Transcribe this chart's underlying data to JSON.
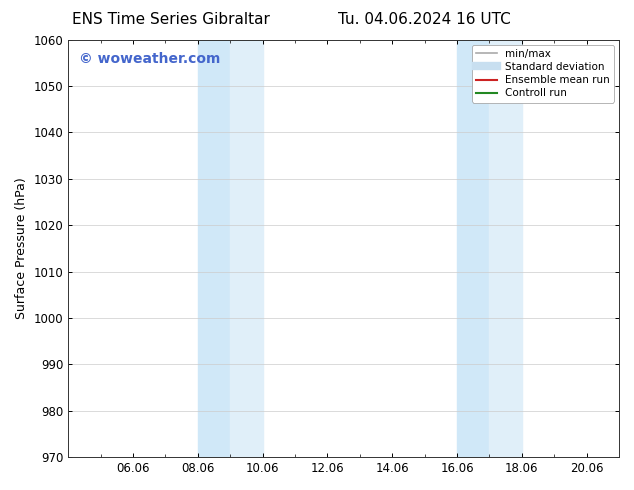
{
  "title_left": "ENS Time Series Gibraltar",
  "title_right": "Tu. 04.06.2024 16 UTC",
  "ylabel": "Surface Pressure (hPa)",
  "ylim": [
    970,
    1060
  ],
  "yticks": [
    970,
    980,
    990,
    1000,
    1010,
    1020,
    1030,
    1040,
    1050,
    1060
  ],
  "xtick_labels": [
    "06.06",
    "08.06",
    "10.06",
    "12.06",
    "14.06",
    "16.06",
    "18.06",
    "20.06"
  ],
  "xtick_positions": [
    2,
    4,
    6,
    8,
    10,
    12,
    14,
    16
  ],
  "xlim": [
    0,
    17
  ],
  "shaded_bands": [
    {
      "x_start": 4,
      "x_end": 5,
      "color": "#d0e8f8"
    },
    {
      "x_start": 5,
      "x_end": 6,
      "color": "#e0eff9"
    },
    {
      "x_start": 12,
      "x_end": 13,
      "color": "#d0e8f8"
    },
    {
      "x_start": 13,
      "x_end": 14,
      "color": "#e0eff9"
    }
  ],
  "watermark_text": "© woweather.com",
  "watermark_color": "#4466cc",
  "watermark_fontsize": 10,
  "legend_items": [
    {
      "label": "min/max",
      "color": "#aaaaaa",
      "lw": 1.2,
      "style": "solid"
    },
    {
      "label": "Standard deviation",
      "color": "#c8dff0",
      "lw": 6,
      "style": "solid"
    },
    {
      "label": "Ensemble mean run",
      "color": "#cc2222",
      "lw": 1.5,
      "style": "solid"
    },
    {
      "label": "Controll run",
      "color": "#228822",
      "lw": 1.5,
      "style": "solid"
    }
  ],
  "bg_color": "#ffffff",
  "grid_color": "#cccccc",
  "title_fontsize": 11,
  "axis_fontsize": 9,
  "tick_fontsize": 8.5,
  "legend_fontsize": 7.5
}
